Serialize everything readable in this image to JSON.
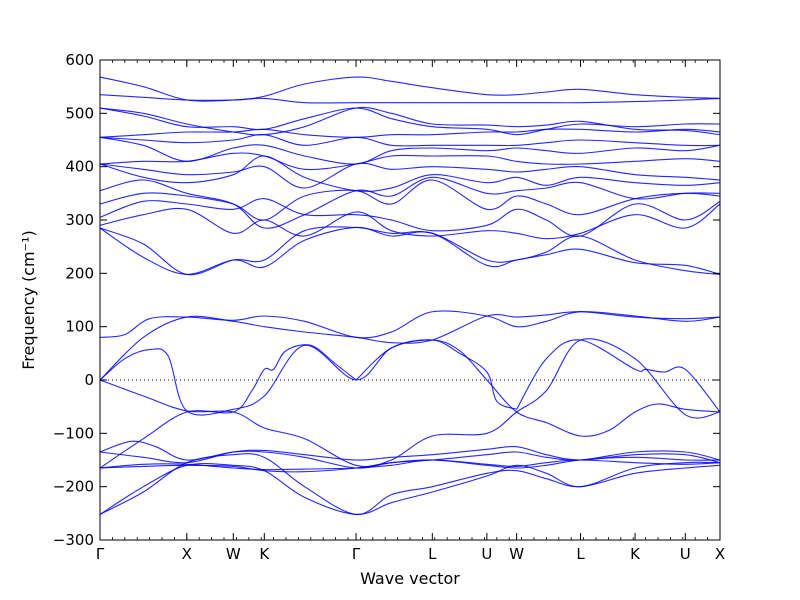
{
  "chart_data": {
    "type": "line",
    "title": "",
    "xlabel": "Wave vector",
    "ylabel": "Frequency (cm⁻¹)",
    "ylim": [
      -300,
      600
    ],
    "yticks": [
      -300,
      -200,
      -100,
      0,
      100,
      200,
      300,
      400,
      500,
      600
    ],
    "ytick_labels": [
      "−300",
      "−200",
      "−100",
      "0",
      "100",
      "200",
      "300",
      "400",
      "500",
      "600"
    ],
    "xlim": [
      0,
      100
    ],
    "high_symmetry_points": [
      {
        "label": "Γ",
        "x": 0
      },
      {
        "label": "X",
        "x": 14.0
      },
      {
        "label": "W",
        "x": 21.5
      },
      {
        "label": "K",
        "x": 26.5
      },
      {
        "label": "Γ",
        "x": 41.3
      },
      {
        "label": "L",
        "x": 53.6
      },
      {
        "label": "U",
        "x": 62.4
      },
      {
        "label": "W",
        "x": 67.2
      },
      {
        "label": "L",
        "x": 77.5
      },
      {
        "label": "K",
        "x": 86.3
      },
      {
        "label": "U",
        "x": 94.4
      },
      {
        "label": "X",
        "x": 100
      }
    ],
    "zero_line": true,
    "line_color": "#0000ff",
    "series": [
      {
        "x": [
          0,
          7,
          14,
          21.5,
          26.5,
          33,
          41.3,
          47,
          53.6,
          62.4,
          67.2,
          72,
          77.5,
          86.3,
          94.4,
          100
        ],
        "y": [
          -252,
          -210,
          -155,
          -140,
          -145,
          -200,
          -252,
          -215,
          -200,
          -175,
          -170,
          -185,
          -200,
          -175,
          -165,
          -160
        ]
      },
      {
        "x": [
          0,
          7,
          14,
          21.5,
          26.5,
          33,
          41.3,
          47,
          53.6,
          62.4,
          67.2,
          72,
          77.5,
          86.3,
          94.4,
          100
        ],
        "y": [
          -252,
          -200,
          -160,
          -160,
          -170,
          -220,
          -252,
          -230,
          -210,
          -180,
          -160,
          -175,
          -200,
          -165,
          -155,
          -155
        ]
      },
      {
        "x": [
          0,
          7,
          14,
          21.5,
          26.5,
          33,
          41.3,
          47,
          53.6,
          62.4,
          67.2,
          72,
          77.5,
          86.3,
          94.4,
          100
        ],
        "y": [
          -165,
          -158,
          -158,
          -165,
          -168,
          -167,
          -165,
          -160,
          -150,
          -158,
          -162,
          -155,
          -150,
          -155,
          -158,
          -155
        ]
      },
      {
        "x": [
          0,
          7,
          14,
          21.5,
          26.5,
          33,
          41.3,
          47,
          53.6,
          62.4,
          67.2,
          72,
          77.5,
          86.3,
          94.4,
          100
        ],
        "y": [
          -165,
          -162,
          -160,
          -162,
          -170,
          -172,
          -165,
          -155,
          -150,
          -160,
          -165,
          -160,
          -150,
          -145,
          -150,
          -150
        ]
      },
      {
        "x": [
          0,
          5,
          9,
          14,
          21.5,
          26.5,
          33,
          41.3,
          47,
          53.6,
          62.4,
          67.2,
          72,
          77.5,
          86.3,
          94.4,
          100
        ],
        "y": [
          -135,
          -115,
          -125,
          -150,
          -135,
          -135,
          -145,
          -165,
          -155,
          -150,
          -140,
          -135,
          -145,
          -150,
          -135,
          -135,
          -150
        ]
      },
      {
        "x": [
          0,
          7,
          14,
          21.5,
          26.5,
          33,
          41.3,
          47,
          53.6,
          62.4,
          67.2,
          72,
          77.5,
          86.3,
          94.4,
          100
        ],
        "y": [
          -135,
          -145,
          -155,
          -135,
          -132,
          -140,
          -150,
          -145,
          -140,
          -130,
          -125,
          -140,
          -150,
          -140,
          -140,
          -155
        ]
      },
      {
        "x": [
          0,
          4,
          8,
          11,
          14,
          21.5,
          26.5,
          33,
          41.3,
          47,
          53.6,
          58,
          62.4,
          67.2,
          72,
          77.5,
          82,
          86.3,
          90,
          94.4,
          100
        ],
        "y": [
          0,
          40,
          57,
          45,
          -58,
          -55,
          -30,
          65,
          0,
          60,
          75,
          55,
          0,
          -60,
          -80,
          -105,
          -95,
          -60,
          -45,
          -55,
          -60
        ]
      },
      {
        "x": [
          0,
          7,
          14,
          21.5,
          24.5,
          26.5,
          28,
          30,
          34,
          38,
          41.3
        ],
        "y": [
          -165,
          -110,
          -60,
          -60,
          -20,
          20,
          20,
          55,
          65,
          30,
          0
        ]
      },
      {
        "x": [
          41.3,
          47,
          53.6,
          58,
          62.4,
          64,
          67.2
        ],
        "y": [
          0,
          60,
          75,
          50,
          15,
          -40,
          -55
        ]
      },
      {
        "x": [
          67.2,
          72,
          77.5,
          86.3,
          88,
          91,
          94.4,
          100
        ],
        "y": [
          -55,
          40,
          75,
          20,
          20,
          15,
          20,
          -60
        ]
      },
      {
        "x": [
          0,
          7,
          14,
          21.5,
          26.5,
          33,
          41.3,
          47,
          53.6,
          62.4,
          67.2,
          72,
          77.5,
          86.3,
          94.4,
          100
        ],
        "y": [
          0,
          -30,
          -58,
          -60,
          -90,
          -110,
          -160,
          -150,
          -105,
          -100,
          -60,
          -20,
          75,
          40,
          -65,
          -60
        ]
      },
      {
        "x": [
          0,
          4,
          8,
          14,
          21.5,
          26.5,
          33,
          41.3,
          47,
          53.6,
          62.4,
          67.2,
          72,
          77.5,
          86.3,
          94.4,
          100
        ],
        "y": [
          80,
          85,
          115,
          118,
          112,
          120,
          110,
          80,
          90,
          128,
          120,
          100,
          110,
          128,
          120,
          110,
          118
        ]
      },
      {
        "x": [
          0,
          7,
          14,
          21.5,
          26.5,
          33,
          41.3,
          47,
          53.6,
          62.4,
          67.2,
          72,
          77.5,
          86.3,
          94.4,
          100
        ],
        "y": [
          0,
          80,
          118,
          110,
          100,
          90,
          80,
          70,
          75,
          120,
          118,
          122,
          128,
          118,
          115,
          118
        ]
      },
      {
        "x": [
          0,
          7,
          14,
          21.5,
          26.5,
          33,
          41.3,
          47,
          53.6,
          62.4,
          67.2,
          72,
          77.5,
          86.3,
          94.4,
          100
        ],
        "y": [
          285,
          230,
          198,
          225,
          212,
          262,
          286,
          270,
          275,
          215,
          225,
          235,
          245,
          220,
          215,
          198
        ]
      },
      {
        "x": [
          0,
          7,
          14,
          21.5,
          26.5,
          33,
          41.3,
          47,
          53.6,
          62.4,
          67.2,
          72,
          77.5,
          86.3,
          94.4,
          100
        ],
        "y": [
          285,
          255,
          198,
          225,
          225,
          280,
          286,
          275,
          275,
          225,
          225,
          240,
          270,
          225,
          205,
          198
        ]
      },
      {
        "x": [
          0,
          7,
          14,
          21.5,
          26.5,
          33,
          41.3,
          47,
          53.6,
          62.4,
          67.2,
          72,
          77.5,
          86.3,
          94.4,
          100
        ],
        "y": [
          290,
          310,
          320,
          275,
          300,
          270,
          315,
          280,
          270,
          280,
          275,
          265,
          275,
          310,
          285,
          330
        ]
      },
      {
        "x": [
          0,
          7,
          14,
          21.5,
          26.5,
          33,
          41.3,
          47,
          53.6,
          62.4,
          67.2,
          72,
          77.5,
          86.3,
          94.4,
          100
        ],
        "y": [
          305,
          335,
          330,
          320,
          340,
          310,
          310,
          300,
          280,
          290,
          320,
          300,
          270,
          330,
          300,
          335
        ]
      },
      {
        "x": [
          0,
          7,
          14,
          21.5,
          26.5,
          33,
          41.3,
          47,
          53.6,
          62.4,
          67.2,
          72,
          77.5,
          86.3,
          94.4,
          100
        ],
        "y": [
          330,
          350,
          345,
          330,
          300,
          345,
          355,
          330,
          375,
          320,
          345,
          330,
          310,
          340,
          350,
          345
        ]
      },
      {
        "x": [
          0,
          7,
          14,
          21.5,
          26.5,
          33,
          41.3,
          47,
          53.6,
          62.4,
          67.2,
          72,
          77.5,
          86.3,
          94.4,
          100
        ],
        "y": [
          355,
          375,
          350,
          330,
          285,
          310,
          355,
          345,
          380,
          350,
          355,
          360,
          370,
          340,
          350,
          350
        ]
      },
      {
        "x": [
          0,
          7,
          14,
          21.5,
          26.5,
          33,
          41.3,
          47,
          53.6,
          62.4,
          67.2,
          72,
          77.5,
          86.3,
          94.4,
          100
        ],
        "y": [
          405,
          380,
          370,
          385,
          420,
          380,
          355,
          360,
          385,
          370,
          380,
          365,
          380,
          370,
          365,
          370
        ]
      },
      {
        "x": [
          0,
          7,
          14,
          21.5,
          26.5,
          33,
          41.3,
          47,
          53.6,
          62.4,
          67.2,
          72,
          77.5,
          86.3,
          94.4,
          100
        ],
        "y": [
          405,
          395,
          385,
          390,
          400,
          360,
          405,
          395,
          400,
          395,
          390,
          395,
          400,
          385,
          380,
          375
        ]
      },
      {
        "x": [
          0,
          7,
          14,
          21.5,
          26.5,
          33,
          41.3,
          47,
          53.6,
          62.4,
          67.2,
          72,
          77.5,
          86.3,
          94.4,
          100
        ],
        "y": [
          405,
          410,
          410,
          425,
          420,
          395,
          405,
          420,
          420,
          420,
          410,
          405,
          405,
          410,
          415,
          410
        ]
      },
      {
        "x": [
          0,
          7,
          14,
          21.5,
          26.5,
          33,
          41.3,
          47,
          53.6,
          62.4,
          67.2,
          72,
          77.5,
          86.3,
          94.4,
          100
        ],
        "y": [
          455,
          440,
          410,
          435,
          440,
          420,
          405,
          430,
          435,
          430,
          435,
          430,
          425,
          435,
          430,
          440
        ]
      },
      {
        "x": [
          0,
          7,
          14,
          21.5,
          26.5,
          33,
          41.3,
          47,
          53.6,
          62.4,
          67.2,
          72,
          77.5,
          86.3,
          94.4,
          100
        ],
        "y": [
          455,
          450,
          445,
          450,
          460,
          440,
          455,
          440,
          440,
          440,
          440,
          445,
          450,
          445,
          440,
          440
        ]
      },
      {
        "x": [
          0,
          7,
          14,
          21.5,
          26.5,
          33,
          41.3,
          47,
          53.6,
          62.4,
          67.2,
          72,
          77.5,
          86.3,
          94.4,
          100
        ],
        "y": [
          455,
          460,
          465,
          465,
          470,
          460,
          455,
          460,
          460,
          465,
          465,
          470,
          470,
          465,
          470,
          465
        ]
      },
      {
        "x": [
          0,
          7,
          14,
          21.5,
          26.5,
          33,
          41.3,
          47,
          53.6,
          62.4,
          67.2,
          72,
          77.5,
          86.3,
          94.4,
          100
        ],
        "y": [
          510,
          495,
          475,
          475,
          470,
          490,
          510,
          490,
          475,
          470,
          460,
          470,
          480,
          475,
          480,
          480
        ]
      },
      {
        "x": [
          0,
          7,
          14,
          21.5,
          26.5,
          33,
          41.3,
          47,
          53.6,
          62.4,
          67.2,
          72,
          77.5,
          86.3,
          94.4,
          100
        ],
        "y": [
          510,
          500,
          480,
          465,
          460,
          475,
          510,
          500,
          480,
          478,
          475,
          478,
          485,
          470,
          468,
          460
        ]
      },
      {
        "x": [
          0,
          7,
          14,
          21.5,
          26.5,
          33,
          41.3,
          47,
          53.6,
          62.4,
          67.2,
          72,
          77.5,
          86.3,
          94.4,
          100
        ],
        "y": [
          535,
          530,
          525,
          525,
          528,
          520,
          520,
          520,
          520,
          520,
          520,
          520,
          520,
          522,
          525,
          528
        ]
      },
      {
        "x": [
          0,
          7,
          14,
          21.5,
          26.5,
          33,
          41.3,
          47,
          53.6,
          62.4,
          67.2,
          72,
          77.5,
          86.3,
          94.4,
          100
        ],
        "y": [
          568,
          550,
          525,
          525,
          532,
          555,
          568,
          560,
          548,
          535,
          535,
          540,
          545,
          535,
          530,
          528
        ]
      }
    ]
  }
}
